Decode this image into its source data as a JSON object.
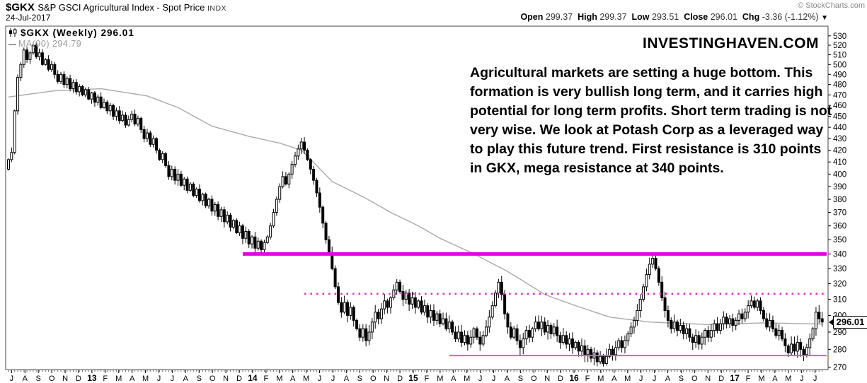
{
  "header": {
    "symbol": "$GKX",
    "title": "S&P GSCI Agricultural Index - Spot Price",
    "exchange": "INDX",
    "date": "24-Jul-2017",
    "credit": "© StockCharts.com",
    "quote": {
      "open_label": "Open",
      "open": "299.37",
      "high_label": "High",
      "high": "299.37",
      "low_label": "Low",
      "low": "293.51",
      "close_label": "Close",
      "close": "296.01",
      "chg_label": "Chg",
      "chg": "-3.36 (-1.12%)",
      "chg_arrow": "▼"
    }
  },
  "legend": {
    "primary": "$GKX (Weekly) 296.01",
    "ma": "MA(90) 294.79"
  },
  "watermark": "INVESTINGHAVEN.COM",
  "annotation": "Agricultural markets are setting a huge bottom. This formation is very bullish long term, and it carries high potential for long term profits. Short term trading is not very wise. We look at Potash Corp as a leveraged way to play this future trend. First resistance is 310 points in GKX, mega resistance at 340 points.",
  "price_tag": "296.01",
  "colors": {
    "up_candle": "#ffffff",
    "down_candle": "#000000",
    "candle_outline": "#000000",
    "ma_line": "#a9a9a9",
    "mega_resistance": "#e600e6",
    "first_resistance": "#ee22cc",
    "support": "#f04fd0",
    "frame": "#444444",
    "axis_text": "#000000"
  },
  "chart_data": {
    "type": "candlestick",
    "timeframe": "weekly",
    "period": "Jul 2012 - Jul 2017",
    "scale": "log",
    "ylim": [
      268.7,
      540.6
    ],
    "y_ticks": [
      530,
      520,
      510,
      500,
      490,
      480,
      470,
      460,
      450,
      440,
      430,
      420,
      410,
      400,
      390,
      380,
      370,
      360,
      350,
      340,
      330,
      320,
      310,
      300,
      290,
      280,
      270
    ],
    "x_labels": [
      "J",
      "A",
      "S",
      "O",
      "N",
      "D",
      "13",
      "F",
      "M",
      "A",
      "M",
      "J",
      "J",
      "A",
      "S",
      "O",
      "N",
      "D",
      "14",
      "F",
      "M",
      "A",
      "M",
      "J",
      "J",
      "A",
      "S",
      "O",
      "N",
      "D",
      "15",
      "F",
      "M",
      "A",
      "M",
      "J",
      "J",
      "A",
      "S",
      "O",
      "N",
      "D",
      "16",
      "F",
      "M",
      "A",
      "M",
      "J",
      "J",
      "A",
      "S",
      "O",
      "N",
      "D",
      "17",
      "F",
      "M",
      "A",
      "M",
      "J",
      "J"
    ],
    "weeks_per_month": 4.345,
    "first_label_week": 1,
    "open0": 404,
    "closes": [
      412,
      418,
      455,
      487,
      500,
      515,
      505,
      512,
      520,
      508,
      512,
      500,
      505,
      495,
      500,
      490,
      483,
      490,
      480,
      486,
      476,
      482,
      473,
      478,
      470,
      475,
      466,
      472,
      463,
      468,
      458,
      463,
      455,
      460,
      450,
      455,
      446,
      451,
      442,
      447,
      452,
      443,
      448,
      438,
      430,
      435,
      425,
      430,
      420,
      412,
      417,
      407,
      398,
      404,
      395,
      400,
      391,
      396,
      387,
      392,
      383,
      388,
      379,
      384,
      375,
      380,
      371,
      376,
      367,
      372,
      363,
      368,
      359,
      364,
      355,
      360,
      351,
      356,
      347,
      352,
      344,
      349,
      343,
      348,
      352,
      360,
      370,
      380,
      390,
      398,
      392,
      400,
      408,
      415,
      421,
      427,
      420,
      412,
      404,
      395,
      385,
      374,
      362,
      350,
      341,
      330,
      318,
      308,
      302,
      308,
      300,
      305,
      297,
      292,
      287,
      292,
      285,
      290,
      296,
      302,
      298,
      304,
      309,
      305,
      311,
      316,
      321,
      315,
      310,
      314,
      307,
      311,
      305,
      309,
      302,
      306,
      299,
      303,
      297,
      301,
      295,
      298,
      292,
      296,
      290,
      286,
      290,
      284,
      288,
      283,
      287,
      292,
      287,
      283,
      288,
      293,
      299,
      306,
      314,
      321,
      313,
      301,
      293,
      287,
      292,
      285,
      281,
      286,
      291,
      287,
      292,
      296,
      292,
      296,
      290,
      294,
      289,
      293,
      288,
      284,
      288,
      283,
      286,
      281,
      284,
      279,
      282,
      277,
      280,
      275,
      278,
      273,
      276,
      272,
      276,
      280,
      277,
      281,
      285,
      281,
      285,
      289,
      293,
      297,
      303,
      310,
      318,
      326,
      333,
      337,
      330,
      321,
      311,
      303,
      297,
      292,
      296,
      291,
      294,
      289,
      292,
      287,
      284,
      288,
      283,
      287,
      291,
      287,
      291,
      295,
      291,
      295,
      299,
      295,
      298,
      294,
      297,
      301,
      298,
      302,
      306,
      309,
      305,
      309,
      303,
      298,
      293,
      297,
      292,
      288,
      291,
      286,
      282,
      278,
      283,
      279,
      284,
      280,
      277,
      281,
      286,
      292,
      302,
      298,
      296
    ],
    "ma90": {
      "label": "MA(90)",
      "last_value": 294.79,
      "anchors": [
        [
          0,
          468
        ],
        [
          15,
          474
        ],
        [
          30,
          476
        ],
        [
          45,
          469
        ],
        [
          55,
          458
        ],
        [
          66,
          441
        ],
        [
          78,
          432
        ],
        [
          88,
          426
        ],
        [
          95,
          420
        ],
        [
          105,
          394
        ],
        [
          115,
          382
        ],
        [
          124,
          370
        ],
        [
          133,
          360
        ],
        [
          140,
          351
        ],
        [
          151,
          340
        ],
        [
          162,
          328
        ],
        [
          174,
          313
        ],
        [
          184,
          306
        ],
        [
          195,
          299
        ],
        [
          208,
          296
        ],
        [
          227,
          294.5
        ],
        [
          245,
          295.5
        ],
        [
          264,
          294.8
        ]
      ]
    },
    "overlays": [
      {
        "name": "mega-resistance-line",
        "value": 340,
        "start_week": 76,
        "style": "solid-thick"
      },
      {
        "name": "first-resistance-line",
        "value": 313.5,
        "start_week": 96,
        "style": "dotted"
      },
      {
        "name": "support-line",
        "value": 276.5,
        "start_week": 143,
        "style": "solid-thin"
      }
    ],
    "last_close": 296.01
  }
}
